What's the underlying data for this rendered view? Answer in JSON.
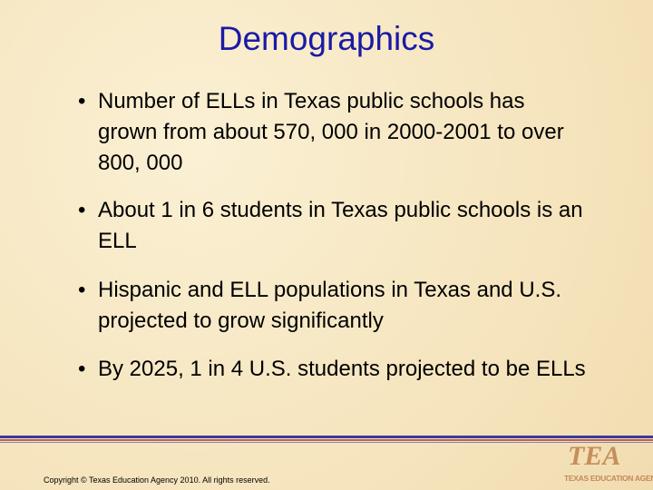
{
  "title": "Demographics",
  "bullets": [
    "Number of ELLs in Texas public schools has grown from about 570, 000 in 2000-2001 to over 800, 000",
    "About 1 in 6 students in Texas public schools is an ELL",
    "Hispanic and ELL populations in Texas and U.S. projected to grow significantly",
    "By 2025, 1 in 4 U.S. students projected to be ELLs"
  ],
  "footer": {
    "copyright": "Copyright © Texas Education Agency 2010. All rights reserved.",
    "logo": {
      "mark": "TEA",
      "name": "TEXAS EDUCATION AGENCY"
    }
  }
}
